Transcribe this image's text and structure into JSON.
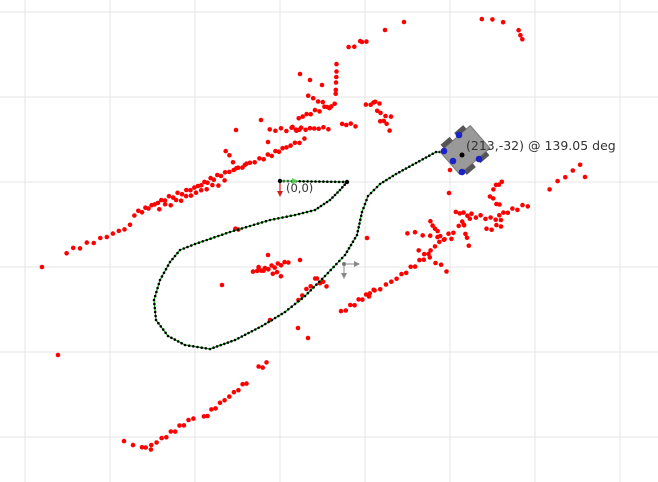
{
  "origin_label": "(0,0)",
  "pose_label": "(213,-32) @ 139.05 deg",
  "colors": {
    "background": "#ffffff",
    "grid": "#e4e4e4",
    "scan_point": "#ff0000",
    "path_point": "#000000",
    "path_line": "#00aa00",
    "robot_body": "#999999",
    "wheel": "#555555",
    "sensor": "#1a22c8",
    "x_axis": "#55cc55",
    "y_axis": "#cc2222",
    "marker": "#888888"
  },
  "icons": {
    "origin": "origin-axes-icon",
    "robot": "robot-icon",
    "goal": "goal-marker-icon"
  }
}
